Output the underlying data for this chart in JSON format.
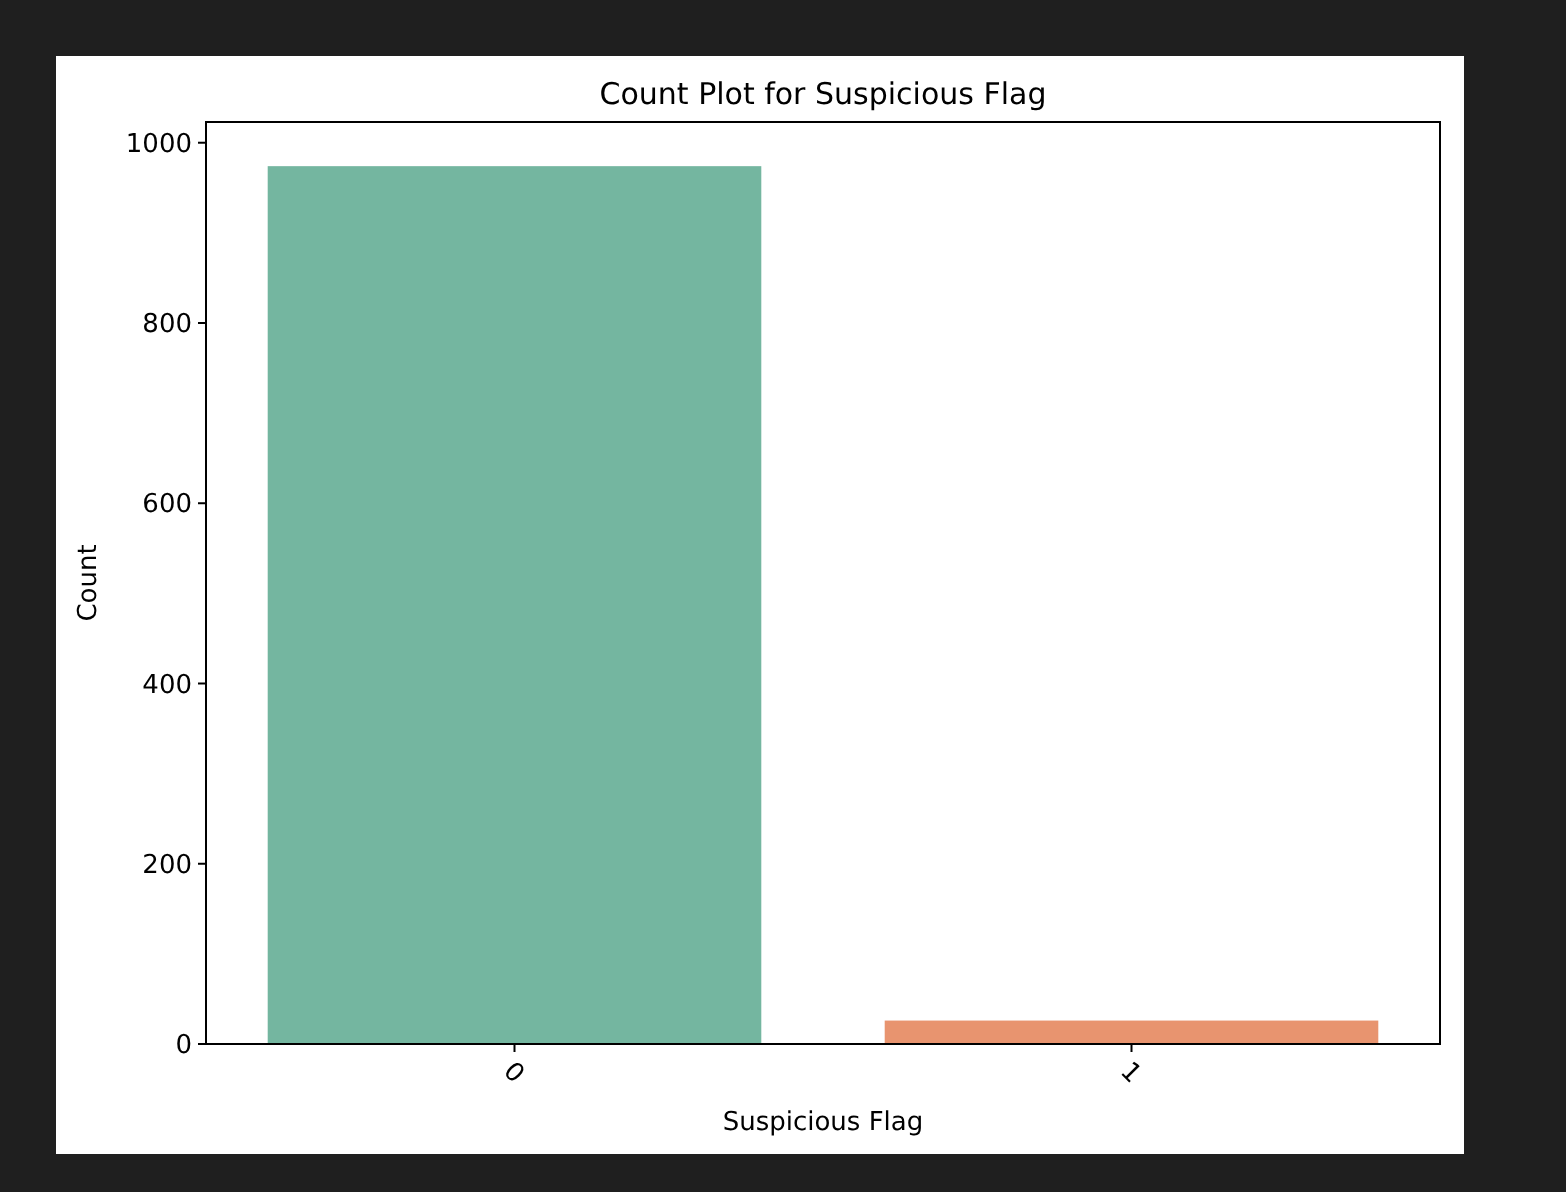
{
  "chart_data": {
    "type": "bar",
    "title": "Count Plot for Suspicious Flag",
    "xlabel": "Suspicious Flag",
    "ylabel": "Count",
    "categories": [
      "0",
      "1"
    ],
    "values": [
      974,
      26
    ],
    "colors": [
      "#74b6a0",
      "#e8946f"
    ],
    "ylim": [
      0,
      1023
    ],
    "yticks": [
      0,
      200,
      400,
      600,
      800,
      1000
    ],
    "grid": false
  }
}
